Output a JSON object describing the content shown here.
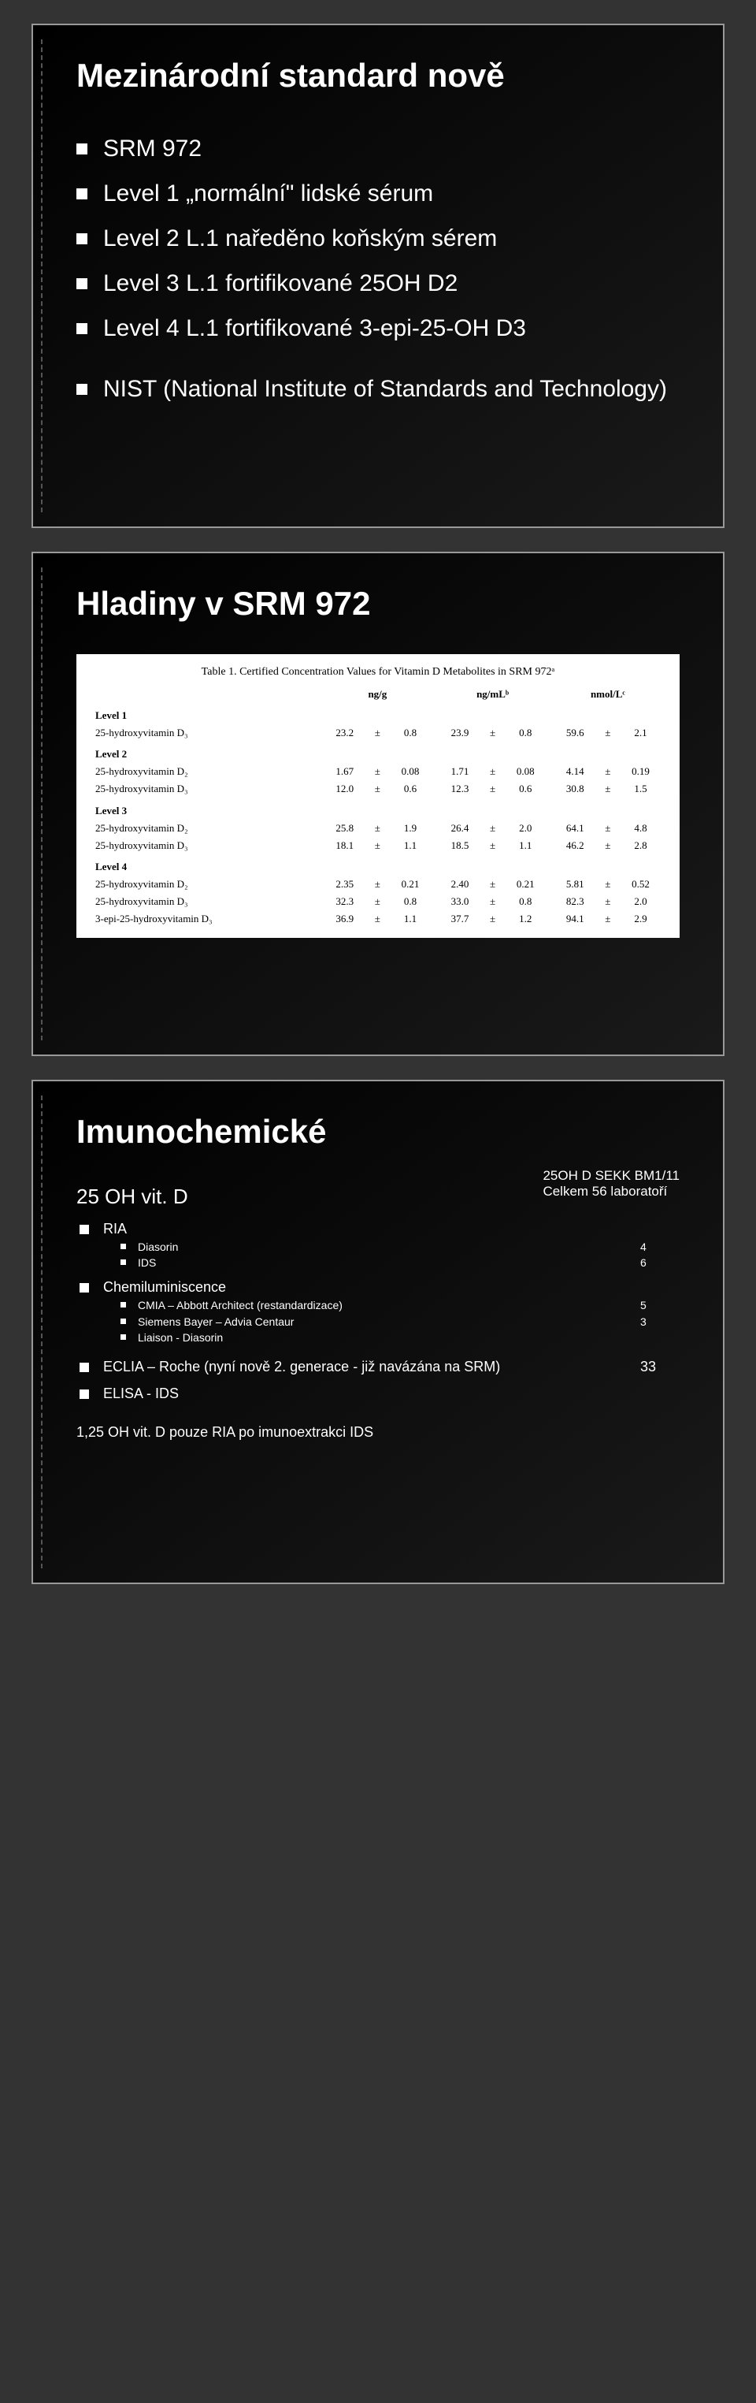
{
  "slide1": {
    "title": "Mezinárodní standard nově",
    "items": [
      "SRM 972",
      "Level 1 „normální\" lidské sérum",
      "Level 2 L.1 naředěno koňským sérem",
      "Level 3 L.1 fortifikované 25OH D2",
      "Level 4 L.1 fortifikované 3-epi-25-OH D3",
      "NIST (National Institute of Standards and Technology)"
    ]
  },
  "slide2": {
    "title": "Hladiny v SRM 972",
    "table_caption": "Table 1. Certified Concentration Values for Vitamin D Metabolites in SRM 972ᵃ",
    "col_headers": [
      "",
      "ng/g",
      "ng/mLᵇ",
      "nmol/Lᶜ"
    ],
    "levels": [
      {
        "name": "Level 1",
        "rows": [
          {
            "label": "25-hydroxyvitamin D₃",
            "ngg": "23.2",
            "ngg_pm": "0.8",
            "ngml": "23.9",
            "ngml_pm": "0.8",
            "nmol": "59.6",
            "nmol_pm": "2.1"
          }
        ]
      },
      {
        "name": "Level 2",
        "rows": [
          {
            "label": "25-hydroxyvitamin D₂",
            "ngg": "1.67",
            "ngg_pm": "0.08",
            "ngml": "1.71",
            "ngml_pm": "0.08",
            "nmol": "4.14",
            "nmol_pm": "0.19"
          },
          {
            "label": "25-hydroxyvitamin D₃",
            "ngg": "12.0",
            "ngg_pm": "0.6",
            "ngml": "12.3",
            "ngml_pm": "0.6",
            "nmol": "30.8",
            "nmol_pm": "1.5"
          }
        ]
      },
      {
        "name": "Level 3",
        "rows": [
          {
            "label": "25-hydroxyvitamin D₂",
            "ngg": "25.8",
            "ngg_pm": "1.9",
            "ngml": "26.4",
            "ngml_pm": "2.0",
            "nmol": "64.1",
            "nmol_pm": "4.8"
          },
          {
            "label": "25-hydroxyvitamin D₃",
            "ngg": "18.1",
            "ngg_pm": "1.1",
            "ngml": "18.5",
            "ngml_pm": "1.1",
            "nmol": "46.2",
            "nmol_pm": "2.8"
          }
        ]
      },
      {
        "name": "Level 4",
        "rows": [
          {
            "label": "25-hydroxyvitamin D₂",
            "ngg": "2.35",
            "ngg_pm": "0.21",
            "ngml": "2.40",
            "ngml_pm": "0.21",
            "nmol": "5.81",
            "nmol_pm": "0.52"
          },
          {
            "label": "25-hydroxyvitamin D₃",
            "ngg": "32.3",
            "ngg_pm": "0.8",
            "ngml": "33.0",
            "ngml_pm": "0.8",
            "nmol": "82.3",
            "nmol_pm": "2.0"
          },
          {
            "label": "3-epi-25-hydroxyvitamin D₃",
            "ngg": "36.9",
            "ngg_pm": "1.1",
            "ngml": "37.7",
            "ngml_pm": "1.2",
            "nmol": "94.1",
            "nmol_pm": "2.9"
          }
        ]
      }
    ]
  },
  "slide3": {
    "title": "Imunochemické",
    "right_note_line1": "25OH D SEKK BM1/11",
    "right_note_line2": "Celkem 56 laboratoří",
    "header_item": "25 OH vit. D",
    "groups": [
      {
        "name": "RIA",
        "items": [
          {
            "label": "Diasorin",
            "value": "4"
          },
          {
            "label": "IDS",
            "value": "6"
          }
        ]
      },
      {
        "name": "Chemiluminiscence",
        "items": [
          {
            "label": "CMIA – Abbott Architect (restandardizace)",
            "value": "5"
          },
          {
            "label": "Siemens Bayer – Advia Centaur",
            "value": "3"
          },
          {
            "label": "Liaison - Diasorin",
            "value": ""
          }
        ]
      }
    ],
    "eclia": {
      "label": "ECLIA – Roche (nyní nově 2. generace - již navázána na SRM)",
      "value": "33"
    },
    "elisa": "ELISA - IDS",
    "footer": "1,25 OH vit. D pouze RIA po imunoextrakci IDS"
  }
}
